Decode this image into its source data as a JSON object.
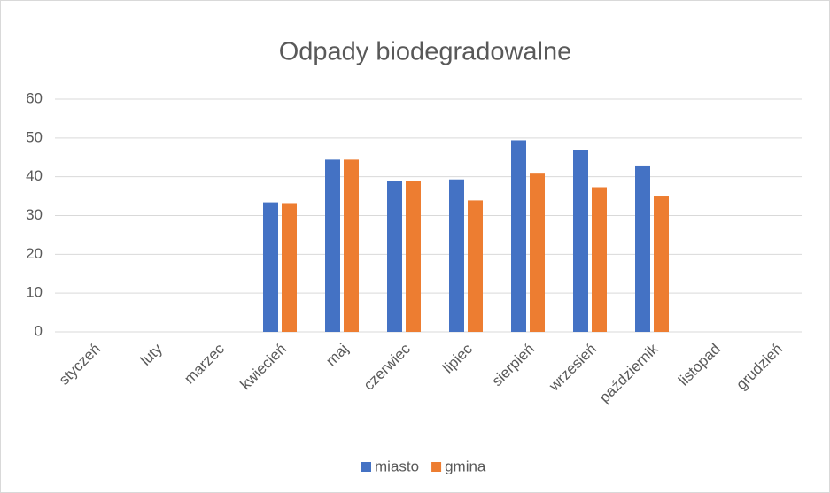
{
  "chart_data": {
    "type": "bar",
    "title": "Odpady biodegradowalne",
    "categories": [
      "styczeń",
      "luty",
      "marzec",
      "kwiecień",
      "maj",
      "czerwiec",
      "lipiec",
      "sierpień",
      "wrzesień",
      "październik",
      "listopad",
      "grudzień"
    ],
    "series": [
      {
        "name": "miasto",
        "color": "#4472c4",
        "values": [
          null,
          null,
          null,
          33.4,
          44.4,
          38.9,
          39.3,
          49.4,
          46.8,
          42.9,
          null,
          null
        ]
      },
      {
        "name": "gmina",
        "color": "#ed7d31",
        "values": [
          null,
          null,
          null,
          33.2,
          44.4,
          39.0,
          33.9,
          40.8,
          37.3,
          34.9,
          null,
          null
        ]
      }
    ],
    "ylim": [
      0,
      60
    ],
    "yticks": [
      0,
      10,
      20,
      30,
      40,
      50,
      60
    ],
    "grid": true,
    "legend": "bottom"
  }
}
